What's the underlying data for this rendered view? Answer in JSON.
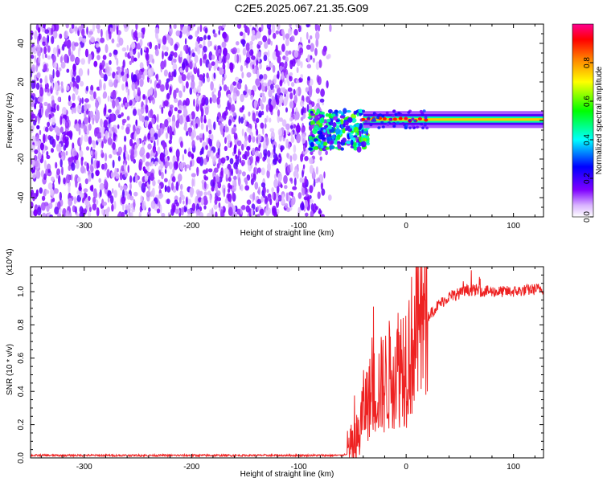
{
  "title": "C2E5.2025.067.21.35.G09",
  "chart_data": [
    {
      "type": "heatmap",
      "xlabel": "Height of straight line (km)",
      "ylabel": "Frequency (Hz)",
      "xlim": [
        -350,
        128
      ],
      "ylim": [
        -50,
        50
      ],
      "xticks": [
        -300,
        -200,
        -100,
        0,
        100
      ],
      "yticks": [
        -40,
        -20,
        0,
        20,
        40
      ],
      "colorbar": {
        "label": "Normalized spectral amplitude",
        "range": [
          0,
          1
        ],
        "ticks": [
          "0.0",
          "0.2",
          "0.4",
          "0.6",
          "0.8"
        ],
        "colors": [
          "#ffffff",
          "#7f00ff",
          "#0000ff",
          "#00ffff",
          "#00ff00",
          "#ffff00",
          "#ff8000",
          "#ff0000",
          "#ff0090"
        ]
      },
      "regions": [
        {
          "description": "noise",
          "x_range": [
            -350,
            -70
          ],
          "freq_range": [
            -50,
            50
          ],
          "amplitude": 0.1
        },
        {
          "description": "transition",
          "x_range": [
            -90,
            -35
          ],
          "freq_range": [
            -15,
            5
          ],
          "amplitude": 0.35
        },
        {
          "description": "carrier",
          "x_range": [
            -40,
            128
          ],
          "freq_center": 0.5,
          "freq_halfwidth": 2,
          "amplitude": 0.75
        }
      ]
    },
    {
      "type": "line",
      "xlabel": "Height of straight line (km)",
      "ylabel": "SNR (10 * v/v)",
      "y_scale_label": "(x10^4)",
      "xlim": [
        -350,
        128
      ],
      "ylim": [
        0,
        1.15
      ],
      "xticks": [
        -300,
        -200,
        -100,
        0,
        100
      ],
      "yticks": [
        "0.0",
        "0.2",
        "0.4",
        "0.6",
        "0.8",
        "1.0"
      ],
      "color": "#ee2222",
      "envelope": {
        "x": [
          -350,
          -60,
          -48,
          -45,
          -40,
          -30,
          -20,
          -10,
          0,
          10,
          20,
          30,
          40,
          60,
          80,
          100,
          128
        ],
        "y": [
          0.015,
          0.015,
          0.04,
          0.1,
          0.3,
          0.4,
          0.45,
          0.55,
          0.6,
          0.75,
          0.85,
          0.92,
          0.97,
          1.01,
          1.0,
          1.0,
          1.02
        ]
      }
    }
  ]
}
